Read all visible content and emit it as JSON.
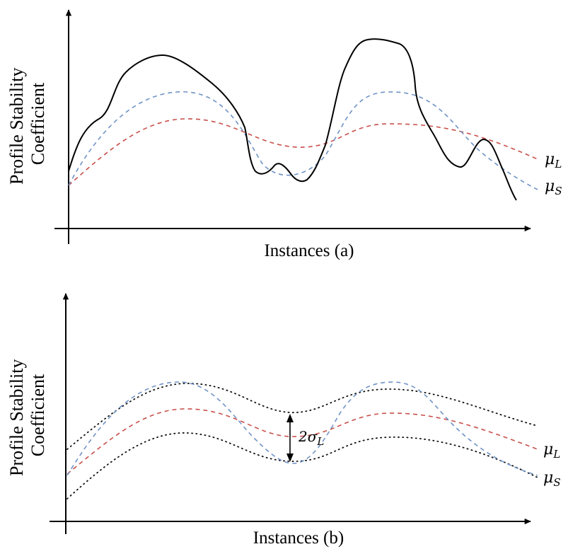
{
  "panel_a": {
    "ylabel_line1": "Profile Stability",
    "ylabel_line2": "Coefficient",
    "xlabel": "Instances (a)",
    "legend_long": {
      "symbol": "μ",
      "sub": "L"
    },
    "legend_short": {
      "symbol": "μ",
      "sub": "S"
    }
  },
  "panel_b": {
    "ylabel_line1": "Profile Stability",
    "ylabel_line2": "Coefficient",
    "xlabel": "Instances (b)",
    "legend_long": {
      "symbol": "μ",
      "sub": "L"
    },
    "legend_short": {
      "symbol": "μ",
      "sub": "S"
    },
    "band_annotation": {
      "prefix": "2σ",
      "sub": "L"
    }
  },
  "colors": {
    "long_term_mean": "#c8504a",
    "short_term_mean": "#6f93c6",
    "actual": "#000000"
  }
}
